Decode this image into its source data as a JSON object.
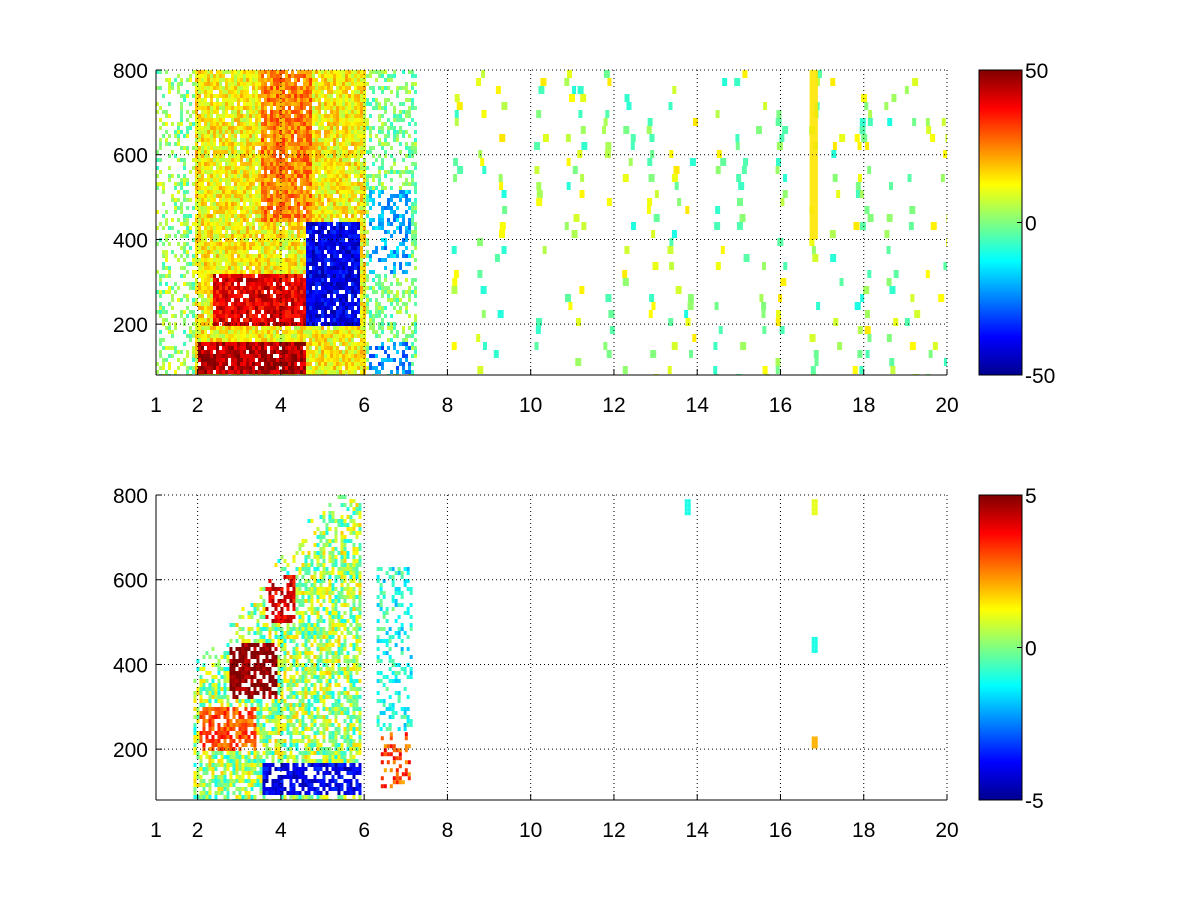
{
  "figure": {
    "background": "#ffffff",
    "colormap": "jet",
    "colormap_stops": [
      "#00008F",
      "#0000FF",
      "#0080FF",
      "#00FFFF",
      "#80FF80",
      "#FFFF00",
      "#FF8000",
      "#FF0000",
      "#800000"
    ]
  },
  "chart_data": [
    {
      "type": "heatmap",
      "title": "",
      "xlabel": "",
      "ylabel": "",
      "x_scale": "linear",
      "xlim": [
        1,
        20
      ],
      "ylim": [
        80,
        800
      ],
      "x_ticks": [
        1,
        2,
        4,
        6,
        8,
        10,
        12,
        14,
        16,
        18,
        20
      ],
      "y_ticks": [
        200,
        400,
        600,
        800
      ],
      "grid": true,
      "colorbar": {
        "min": -50,
        "max": 50,
        "ticks": [
          50,
          0,
          -50
        ]
      },
      "structure": {
        "dense_x_range": [
          1,
          7.2
        ],
        "sparse_x_range": [
          7.2,
          20
        ],
        "features": [
          {
            "label": "positive band",
            "x": [
              2,
              4.6
            ],
            "y": [
              90,
              160
            ],
            "value": 45
          },
          {
            "label": "positive band",
            "x": [
              2.3,
              4.6
            ],
            "y": [
              200,
              320
            ],
            "value": 40
          },
          {
            "label": "positive ridge",
            "x": [
              3.5,
              4.7
            ],
            "y": [
              450,
              800
            ],
            "value": 25
          },
          {
            "label": "negative band",
            "x": [
              4.6,
              5.9
            ],
            "y": [
              200,
              450
            ],
            "value": -40
          },
          {
            "label": "negative patch",
            "x": [
              6.1,
              7.1
            ],
            "y": [
              320,
              520
            ],
            "value": -20
          },
          {
            "label": "negative patch",
            "x": [
              6.1,
              7.1
            ],
            "y": [
              90,
              160
            ],
            "value": -25
          },
          {
            "label": "positive stripe",
            "x": [
              16.7,
              16.85
            ],
            "y": [
              400,
              800
            ],
            "value": 15
          }
        ],
        "sparse_columns": [
          8.2,
          8.8,
          9.2,
          10.2,
          10.9,
          11.1,
          11.8,
          12.3,
          12.9,
          13.4,
          13.8,
          14.5,
          15.0,
          15.5,
          16.0,
          16.8,
          17.3,
          17.8,
          18.0,
          18.6,
          19.1,
          19.6,
          19.9
        ],
        "sparse_value_range": [
          -10,
          15
        ]
      }
    },
    {
      "type": "heatmap",
      "title": "",
      "xlabel": "",
      "ylabel": "",
      "x_scale": "linear",
      "xlim": [
        1,
        20
      ],
      "ylim": [
        80,
        800
      ],
      "x_ticks": [
        1,
        2,
        4,
        6,
        8,
        10,
        12,
        14,
        16,
        18,
        20
      ],
      "y_ticks": [
        200,
        400,
        600,
        800
      ],
      "grid": true,
      "colorbar": {
        "min": -5,
        "max": 5,
        "ticks": [
          5,
          0,
          -5
        ]
      },
      "structure": {
        "dense_x_range": [
          1.9,
          5.9
        ],
        "features": [
          {
            "label": "strong positive",
            "x": [
              2.7,
              3.9
            ],
            "y": [
              320,
              460
            ],
            "value": 5
          },
          {
            "label": "positive patch",
            "x": [
              3.6,
              4.3
            ],
            "y": [
              500,
              620
            ],
            "value": 4
          },
          {
            "label": "positive band",
            "x": [
              2,
              3.4
            ],
            "y": [
              200,
              300
            ],
            "value": 3
          },
          {
            "label": "negative band",
            "x": [
              3.5,
              5.9
            ],
            "y": [
              100,
              170
            ],
            "value": -4
          },
          {
            "label": "sparse cluster",
            "x": [
              6.3,
              7.1
            ],
            "y": [
              250,
              630
            ],
            "value": -1
          },
          {
            "label": "positive spots",
            "x": [
              6.4,
              7.1
            ],
            "y": [
              110,
              240
            ],
            "value": 3
          },
          {
            "label": "isolated point",
            "x": [
              13.7,
              13.8
            ],
            "y": [
              760,
              790
            ],
            "value": -1
          },
          {
            "label": "isolated point",
            "x": [
              16.75,
              16.85
            ],
            "y": [
              760,
              790
            ],
            "value": 1
          },
          {
            "label": "isolated point",
            "x": [
              16.75,
              16.85
            ],
            "y": [
              435,
              465
            ],
            "value": -1
          },
          {
            "label": "isolated point",
            "x": [
              16.75,
              16.85
            ],
            "y": [
              205,
              230
            ],
            "value": 2
          }
        ]
      }
    }
  ]
}
